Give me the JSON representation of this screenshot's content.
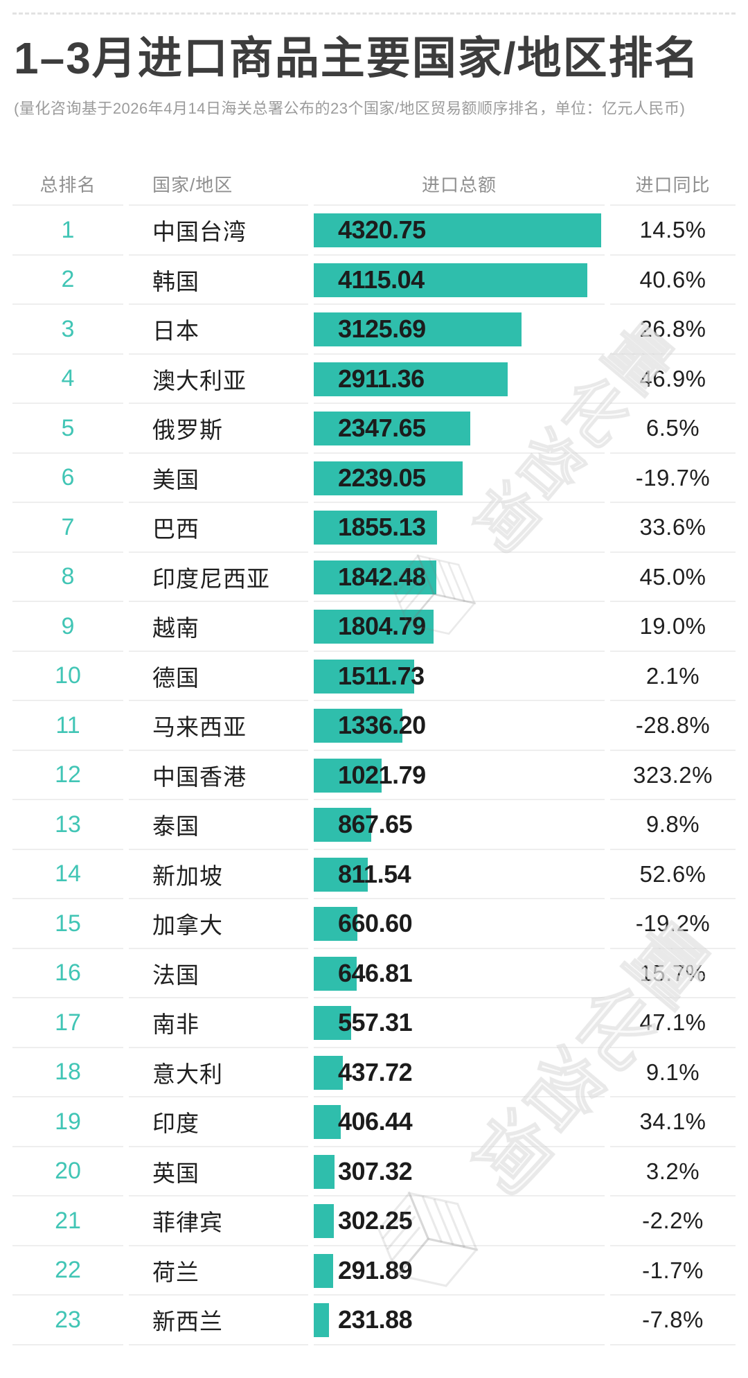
{
  "header": {
    "title": "1–3月进口商品主要国家/地区排名",
    "subtitle": "(量化咨询基于2026年4月14日海关总署公布的23个国家/地区贸易额顺序排名，单位：亿元人民币)"
  },
  "watermark": {
    "text": "量化咨询"
  },
  "table": {
    "columns": {
      "rank": "总排名",
      "country": "国家/地区",
      "import_total": "进口总额",
      "import_yoy": "进口同比"
    }
  },
  "style": {
    "bar_color": "#2fbeac",
    "rank_color": "#41c5b5",
    "title_color": "#3d3d3d"
  },
  "chart_data": {
    "type": "bar",
    "orientation": "horizontal",
    "title": "1–3月进口商品主要国家/地区排名",
    "subtitle": "(量化咨询基于2026年4月14日海关总署公布的23个国家/地区贸易额顺序排名，单位：亿元人民币)",
    "unit": "亿元人民币",
    "legend": false,
    "grid": false,
    "xlim": [
      0,
      4320.75
    ],
    "ranks": [
      1,
      2,
      3,
      4,
      5,
      6,
      7,
      8,
      9,
      10,
      11,
      12,
      13,
      14,
      15,
      16,
      17,
      18,
      19,
      20,
      21,
      22,
      23
    ],
    "categories": [
      "中国台湾",
      "韩国",
      "日本",
      "澳大利亚",
      "俄罗斯",
      "美国",
      "巴西",
      "印度尼西亚",
      "越南",
      "德国",
      "马来西亚",
      "中国香港",
      "泰国",
      "新加坡",
      "加拿大",
      "法国",
      "南非",
      "意大利",
      "印度",
      "英国",
      "菲律宾",
      "荷兰",
      "新西兰"
    ],
    "series": [
      {
        "name": "进口总额",
        "values": [
          4320.75,
          4115.04,
          3125.69,
          2911.36,
          2347.65,
          2239.05,
          1855.13,
          1842.48,
          1804.79,
          1511.73,
          1336.2,
          1021.79,
          867.65,
          811.54,
          660.6,
          646.81,
          557.31,
          437.72,
          406.44,
          307.32,
          302.25,
          291.89,
          231.88
        ]
      },
      {
        "name": "进口同比",
        "values": [
          14.5,
          40.6,
          26.8,
          46.9,
          6.5,
          -19.7,
          33.6,
          45.0,
          19.0,
          2.1,
          -28.8,
          323.2,
          9.8,
          52.6,
          -19.2,
          15.7,
          47.1,
          9.1,
          34.1,
          3.2,
          -2.2,
          -1.7,
          -7.8
        ]
      }
    ],
    "value_labels": [
      "4320.75",
      "4115.04",
      "3125.69",
      "2911.36",
      "2347.65",
      "2239.05",
      "1855.13",
      "1842.48",
      "1804.79",
      "1511.73",
      "1336.20",
      "1021.79",
      "867.65",
      "811.54",
      "660.60",
      "646.81",
      "557.31",
      "437.72",
      "406.44",
      "307.32",
      "302.25",
      "291.89",
      "231.88"
    ],
    "yoy_labels": [
      "14.5%",
      "40.6%",
      "26.8%",
      "46.9%",
      "6.5%",
      "-19.7%",
      "33.6%",
      "45.0%",
      "19.0%",
      "2.1%",
      "-28.8%",
      "323.2%",
      "9.8%",
      "52.6%",
      "-19.2%",
      "15.7%",
      "47.1%",
      "9.1%",
      "34.1%",
      "3.2%",
      "-2.2%",
      "-1.7%",
      "-7.8%"
    ]
  }
}
